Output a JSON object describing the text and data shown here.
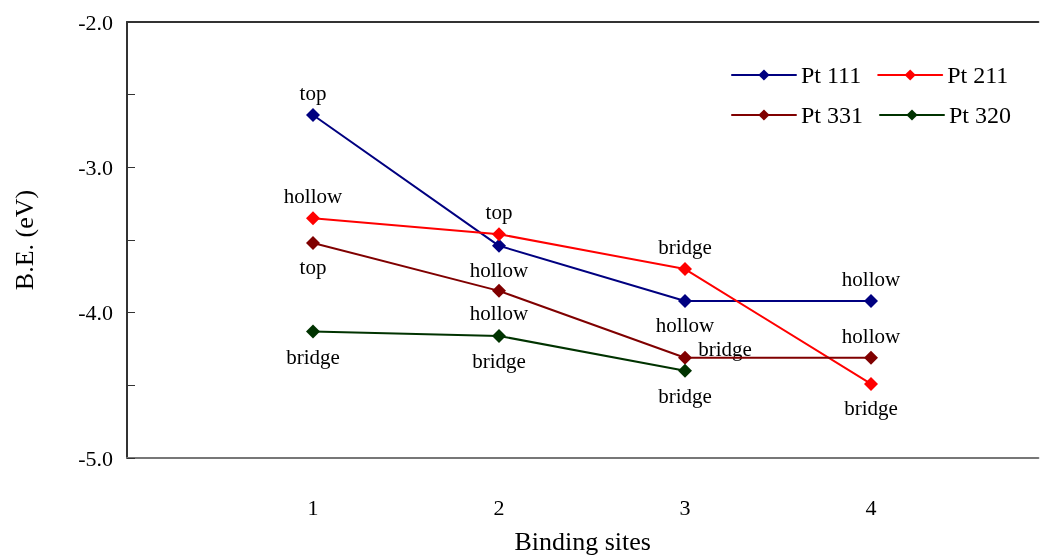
{
  "chart_data": {
    "type": "line",
    "xlabel": "Binding sites",
    "ylabel": "B.E. (eV)",
    "x": [
      1,
      2,
      3,
      4
    ],
    "xlim": [
      0,
      4.9
    ],
    "xticks": [
      1,
      2,
      3,
      4
    ],
    "ylim": [
      -5,
      -2
    ],
    "yticks": [
      {
        "value": -5,
        "label": "-5.0"
      },
      {
        "value": -4.5,
        "label": null
      },
      {
        "value": -4,
        "label": "-4.0"
      },
      {
        "value": -3.5,
        "label": null
      },
      {
        "value": -3,
        "label": "-3.0"
      },
      {
        "value": -2.5,
        "label": null
      },
      {
        "value": -2,
        "label": "-2.0"
      }
    ],
    "grid": false,
    "legend": "top right",
    "marker": "diamond",
    "line_style": "solid",
    "series": [
      {
        "name": "Pt 111",
        "color": "#000080",
        "values": [
          -2.64,
          -3.54,
          -3.92,
          -3.92
        ]
      },
      {
        "name": "Pt 211",
        "color": "#ff0000",
        "values": [
          -3.35,
          -3.46,
          -3.7,
          -4.49
        ]
      },
      {
        "name": "Pt 331",
        "color": "#800000",
        "values": [
          -3.52,
          -3.85,
          -4.31,
          -4.31
        ]
      },
      {
        "name": "Pt 320",
        "color": "#003300",
        "values": [
          -4.13,
          -4.16,
          -4.4,
          null
        ]
      }
    ],
    "annotations": [
      {
        "text": "top",
        "x": 1,
        "y": -2.64
      },
      {
        "text": "hollow",
        "x": 2,
        "y": -3.54
      },
      {
        "text": "hollow",
        "x": 3,
        "y": -3.92
      },
      {
        "text": "hollow",
        "x": 4,
        "y": -3.92
      },
      {
        "text": "hollow",
        "x": 1,
        "y": -3.35
      },
      {
        "text": "top",
        "x": 2,
        "y": -3.46
      },
      {
        "text": "bridge",
        "x": 3,
        "y": -3.7
      },
      {
        "text": "bridge",
        "x": 4,
        "y": -4.49
      },
      {
        "text": "top",
        "x": 1,
        "y": -3.52
      },
      {
        "text": "hollow",
        "x": 2,
        "y": -3.85
      },
      {
        "text": "bridge",
        "x": 3,
        "y": -4.31
      },
      {
        "text": "hollow",
        "x": 4,
        "y": -4.31
      },
      {
        "text": "bridge",
        "x": 1,
        "y": -4.13
      },
      {
        "text": "bridge",
        "x": 2,
        "y": -4.16
      },
      {
        "text": "bridge",
        "x": 3,
        "y": -4.4
      }
    ]
  }
}
